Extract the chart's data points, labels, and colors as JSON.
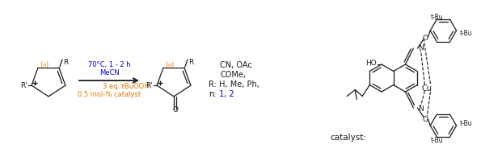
{
  "bg_color": "#ffffff",
  "figsize": [
    5.95,
    2.01
  ],
  "dpi": 100,
  "orange": "#e07800",
  "blue": "#0000cd",
  "black": "#1a1a1a",
  "conditions": {
    "line1": "0.5 mol-% catalyst",
    "line2_pre": "3 eq. ",
    "line2_italic": "t",
    "line2_post": "-BuOOH",
    "line3": "MeCN",
    "line4": "70°C, 1 - 2 h"
  },
  "n_r_labels": {
    "n_label": "n:",
    "n_vals": " 1, 2",
    "r_label": "R:",
    "r_line1": " H, Me, Ph,",
    "r_line2": "COMe,",
    "r_line3": "CN, OAc"
  },
  "catalyst_label": "catalyst:"
}
